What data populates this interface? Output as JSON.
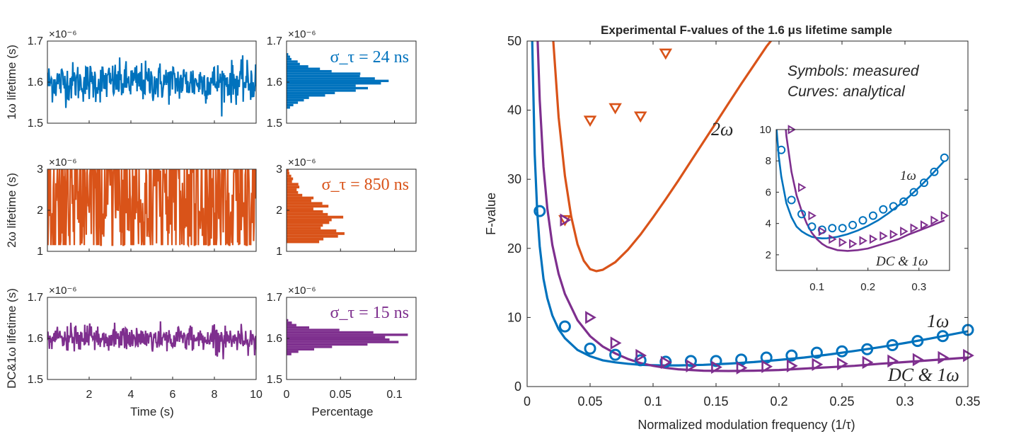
{
  "colors": {
    "blue": "#0072BD",
    "orange": "#D95319",
    "purple": "#7E2F8E",
    "axis": "#262626"
  },
  "left_panels": {
    "exponent_label": "×10⁻⁶",
    "rows": [
      {
        "ylabel": "1ω lifetime (s)",
        "ylim": [
          1.5,
          1.7
        ],
        "yticks": [
          "1.5",
          "1.6",
          "1.7"
        ],
        "ytick_values": [
          1.5,
          1.6,
          1.7
        ],
        "sigma_label": "σ_τ = 24 ns",
        "color_key": "blue",
        "trace_mean": 1.6,
        "trace_spread": 0.024
      },
      {
        "ylabel": "2ω lifetime (s)",
        "ylim": [
          1,
          3
        ],
        "yticks": [
          "1",
          "2",
          "3"
        ],
        "ytick_values": [
          1,
          2,
          3
        ],
        "sigma_label": "σ_τ = 850 ns",
        "color_key": "orange",
        "trace_mean": 1.8,
        "trace_spread": 0.85
      },
      {
        "ylabel": "DC&1ω lifetime (s)",
        "ylim": [
          1.5,
          1.7
        ],
        "yticks": [
          "1.5",
          "1.6",
          "1.7"
        ],
        "ytick_values": [
          1.5,
          1.6,
          1.7
        ],
        "sigma_label": "σ_τ = 15 ns",
        "color_key": "purple",
        "trace_mean": 1.6,
        "trace_spread": 0.015
      }
    ],
    "time_axis": {
      "xlabel": "Time (s)",
      "xlim": [
        0,
        10
      ],
      "ticks": [
        "2",
        "4",
        "6",
        "8",
        "10"
      ],
      "tick_values": [
        2,
        4,
        6,
        8,
        10
      ]
    },
    "hist_axis": {
      "xlabel": "Percentage",
      "xlim": [
        0,
        0.12
      ],
      "ticks": [
        "0",
        "0.05",
        "0.1"
      ],
      "tick_values": [
        0,
        0.05,
        0.1
      ]
    }
  },
  "chart_data": [
    {
      "type": "line",
      "title": "Experimental F-values of the 1.6 μs lifetime sample",
      "xlabel": "Normalized modulation frequency (1/τ)",
      "ylabel": "F-value",
      "xlim": [
        0,
        0.35
      ],
      "ylim": [
        0,
        50
      ],
      "xticks": [
        "0",
        "0.05",
        "0.1",
        "0.15",
        "0.2",
        "0.25",
        "0.3",
        "0.35"
      ],
      "xtick_values": [
        0,
        0.05,
        0.1,
        0.15,
        0.2,
        0.25,
        0.3,
        0.35
      ],
      "yticks": [
        "0",
        "10",
        "20",
        "30",
        "40",
        "50"
      ],
      "ytick_values": [
        0,
        10,
        20,
        30,
        40,
        50
      ],
      "annotations": [
        "Symbols: measured",
        "Curves: analytical"
      ],
      "curve_labels": [
        {
          "text": "2ω",
          "color_key": "axis"
        },
        {
          "text": "1ω",
          "color_key": "axis"
        },
        {
          "text": "DC & 1ω",
          "color_key": "axis"
        }
      ],
      "series": [
        {
          "label_text": "2ω",
          "color_key": "orange",
          "marker": "triangle-down",
          "measured_x": [
            0.03,
            0.05,
            0.07,
            0.09,
            0.11
          ],
          "measured_y": [
            24.1,
            38.5,
            40.3,
            39.1,
            48.2
          ],
          "curve_x": [
            0.02,
            0.025,
            0.03,
            0.035,
            0.04,
            0.045,
            0.05,
            0.055,
            0.06,
            0.07,
            0.08,
            0.09,
            0.1,
            0.11,
            0.12,
            0.13,
            0.14,
            0.15,
            0.16,
            0.17,
            0.18,
            0.19,
            0.2
          ],
          "curve_y": [
            52.0,
            39.0,
            30.5,
            24.6,
            20.6,
            18.2,
            17.0,
            16.7,
            16.9,
            18.0,
            19.8,
            22.0,
            24.5,
            27.1,
            29.8,
            32.6,
            35.4,
            38.2,
            41.0,
            43.8,
            46.5,
            49.2,
            51.5
          ]
        },
        {
          "label_text": "1ω",
          "color_key": "blue",
          "marker": "circle",
          "measured_x": [
            0.01,
            0.03,
            0.05,
            0.07,
            0.09,
            0.11,
            0.13,
            0.15,
            0.17,
            0.19,
            0.21,
            0.23,
            0.25,
            0.27,
            0.29,
            0.31,
            0.33,
            0.35
          ],
          "measured_y": [
            25.4,
            8.7,
            5.5,
            4.6,
            3.8,
            3.6,
            3.7,
            3.7,
            3.9,
            4.2,
            4.5,
            4.9,
            5.1,
            5.4,
            6.0,
            6.6,
            7.3,
            8.2
          ],
          "curve_x": [
            0.004,
            0.006,
            0.008,
            0.01,
            0.013,
            0.016,
            0.02,
            0.025,
            0.03,
            0.04,
            0.05,
            0.06,
            0.07,
            0.08,
            0.09,
            0.1,
            0.11,
            0.12,
            0.14,
            0.16,
            0.18,
            0.2,
            0.22,
            0.24,
            0.26,
            0.28,
            0.3,
            0.32,
            0.35
          ],
          "curve_y": [
            50.5,
            33.7,
            25.4,
            20.3,
            15.6,
            12.8,
            10.3,
            8.3,
            7.0,
            5.3,
            4.4,
            3.8,
            3.5,
            3.3,
            3.15,
            3.08,
            3.05,
            3.06,
            3.15,
            3.32,
            3.55,
            3.85,
            4.2,
            4.65,
            5.15,
            5.7,
            6.3,
            6.95,
            8.0
          ]
        },
        {
          "label_text": "DC & 1ω",
          "color_key": "purple",
          "marker": "triangle-right",
          "measured_x": [
            0.03,
            0.05,
            0.07,
            0.09,
            0.11,
            0.13,
            0.15,
            0.17,
            0.19,
            0.21,
            0.23,
            0.25,
            0.27,
            0.29,
            0.31,
            0.33,
            0.35
          ],
          "measured_y": [
            24.1,
            10.0,
            6.3,
            4.5,
            3.5,
            3.0,
            2.8,
            2.7,
            2.9,
            3.0,
            3.2,
            3.3,
            3.5,
            3.7,
            3.9,
            4.2,
            4.5
          ],
          "curve_x": [
            0.008,
            0.01,
            0.013,
            0.016,
            0.02,
            0.025,
            0.03,
            0.04,
            0.05,
            0.06,
            0.07,
            0.08,
            0.09,
            0.1,
            0.11,
            0.12,
            0.14,
            0.16,
            0.18,
            0.2,
            0.22,
            0.24,
            0.26,
            0.28,
            0.3,
            0.32,
            0.35
          ],
          "curve_y": [
            52.0,
            41.5,
            31.8,
            25.8,
            20.5,
            16.3,
            13.4,
            9.6,
            7.3,
            5.8,
            4.8,
            4.0,
            3.4,
            3.0,
            2.7,
            2.5,
            2.3,
            2.25,
            2.3,
            2.4,
            2.6,
            2.8,
            3.0,
            3.3,
            3.55,
            3.8,
            4.2
          ]
        }
      ]
    },
    {
      "type": "line",
      "title": "",
      "xlim": [
        0.02,
        0.36
      ],
      "ylim": [
        1,
        10
      ],
      "xticks": [
        "0.1",
        "0.2",
        "0.3"
      ],
      "xtick_values": [
        0.1,
        0.2,
        0.3
      ],
      "yticks": [
        "2",
        "4",
        "6",
        "8",
        "10"
      ],
      "ytick_values": [
        2,
        4,
        6,
        8,
        10
      ],
      "curve_labels": [
        {
          "text": "1ω",
          "color_key": "axis"
        },
        {
          "text": "DC & 1ω",
          "color_key": "axis"
        }
      ]
    }
  ]
}
